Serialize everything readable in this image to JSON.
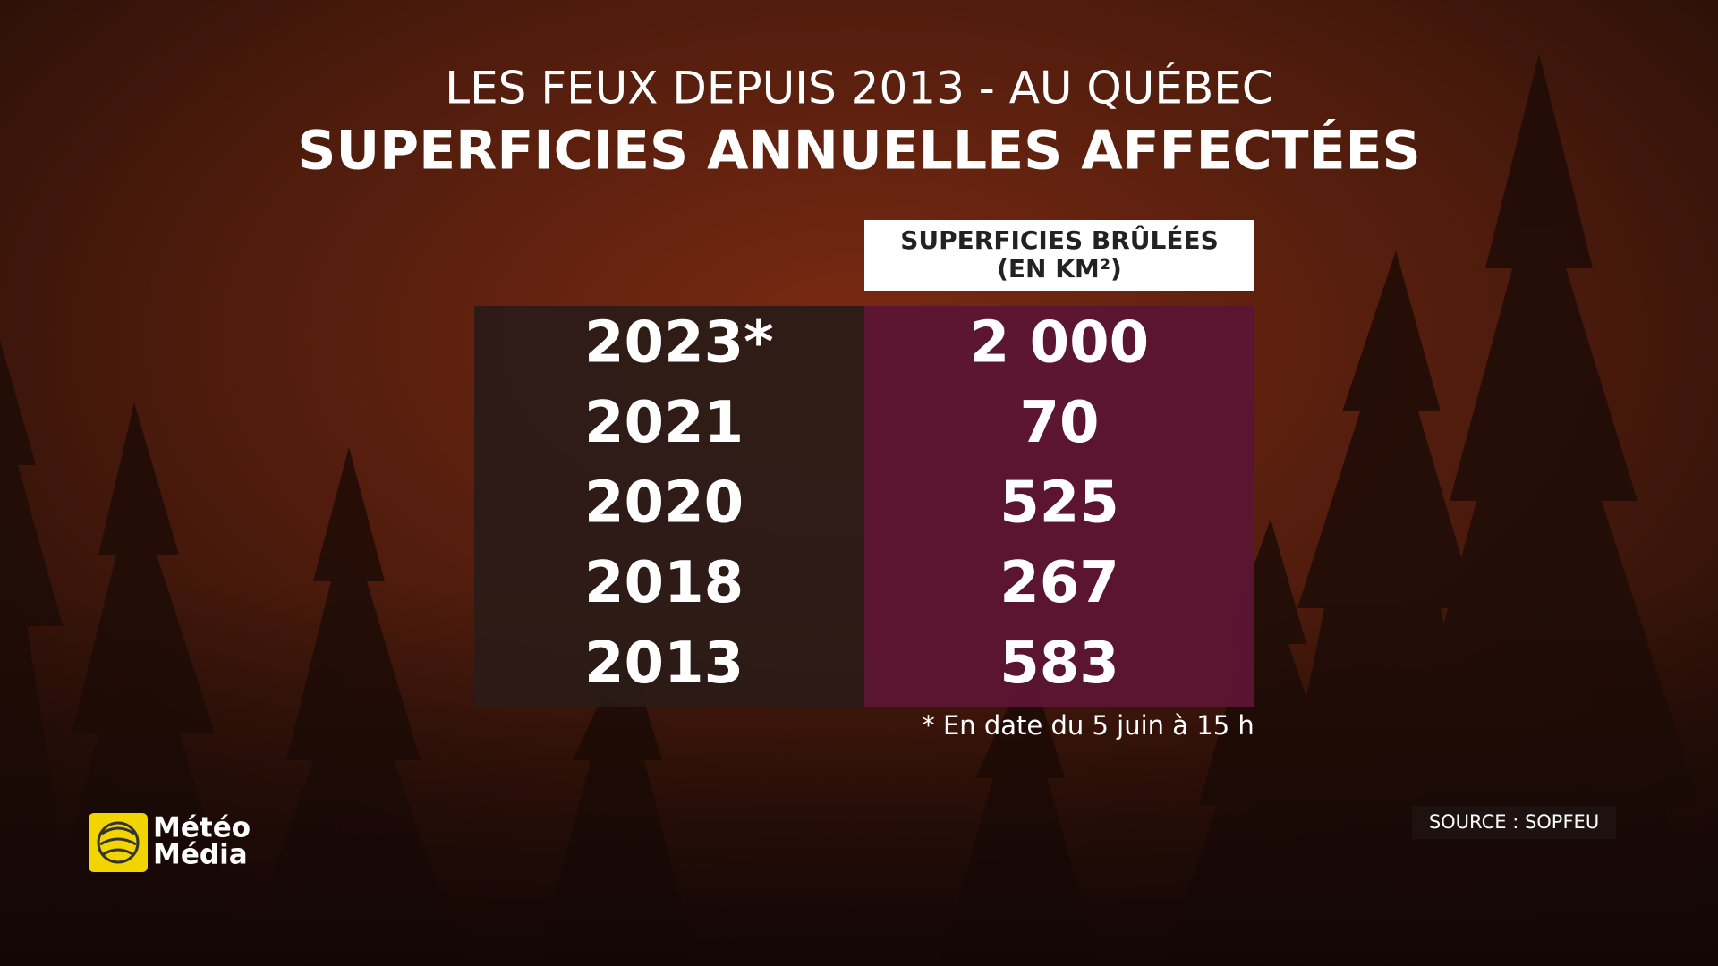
{
  "header": {
    "title": "LES FEUX DEPUIS 2013 - AU QUÉBEC",
    "subtitle": "SUPERFICIES ANNUELLES AFFECTÉES"
  },
  "table": {
    "column_header": [
      "SUPERFICIES BRÛLÉES",
      "(EN KM²)"
    ],
    "rows": [
      [
        "2023*",
        "2 000"
      ],
      [
        "2021",
        "70"
      ],
      [
        "2020",
        "525"
      ],
      [
        "2018",
        "267"
      ],
      [
        "2013",
        "583"
      ]
    ]
  },
  "footnote": "* En date du 5 juin à 15 h",
  "source": "SOURCE : SOPFEU",
  "logo": [
    "Météo",
    "Média"
  ]
}
